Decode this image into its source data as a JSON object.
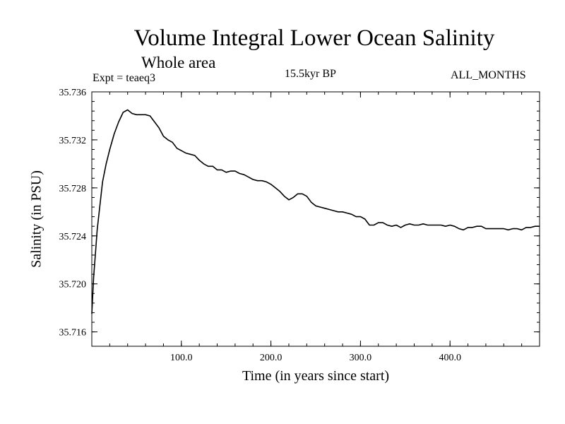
{
  "chart_data": {
    "type": "line",
    "title": "Volume Integral Lower Ocean Salinity",
    "subtitle": "Whole area",
    "experiment_label": "Expt = teaeq3",
    "period_label": "15.5kyr BP",
    "months_label": "ALL_MONTHS",
    "xlabel": "Time (in years since start)",
    "ylabel": "Salinity (in PSU)",
    "xlim": [
      0,
      500
    ],
    "ylim": [
      35.7148,
      35.736
    ],
    "x_ticks": [
      100,
      200,
      300,
      400
    ],
    "x_tick_labels": [
      "100.0",
      "200.0",
      "300.0",
      "400.0"
    ],
    "y_ticks": [
      35.716,
      35.72,
      35.724,
      35.728,
      35.732,
      35.736
    ],
    "y_tick_labels": [
      "35.716",
      "35.720",
      "35.724",
      "35.728",
      "35.732",
      "35.736"
    ],
    "series": [
      {
        "name": "Lower ocean salinity",
        "x": [
          0,
          2,
          4,
          6,
          9,
          12,
          16,
          20,
          25,
          30,
          35,
          40,
          45,
          50,
          55,
          60,
          65,
          70,
          75,
          80,
          85,
          90,
          95,
          100,
          105,
          110,
          115,
          120,
          125,
          130,
          135,
          140,
          145,
          150,
          155,
          160,
          165,
          170,
          175,
          180,
          185,
          190,
          195,
          200,
          205,
          210,
          215,
          220,
          225,
          230,
          235,
          240,
          245,
          250,
          255,
          260,
          265,
          270,
          275,
          280,
          285,
          290,
          295,
          300,
          305,
          310,
          315,
          320,
          325,
          330,
          335,
          340,
          345,
          350,
          355,
          360,
          365,
          370,
          375,
          380,
          385,
          390,
          395,
          400,
          405,
          410,
          415,
          420,
          425,
          430,
          435,
          440,
          445,
          450,
          455,
          460,
          465,
          470,
          475,
          480,
          485,
          490,
          495,
          500
        ],
        "values": [
          35.7175,
          35.7205,
          35.7225,
          35.7245,
          35.7265,
          35.7285,
          35.73,
          35.7312,
          35.7325,
          35.7335,
          35.7343,
          35.7345,
          35.7342,
          35.7341,
          35.7341,
          35.7341,
          35.734,
          35.7335,
          35.733,
          35.7323,
          35.732,
          35.7318,
          35.7313,
          35.7311,
          35.7309,
          35.7308,
          35.7307,
          35.7303,
          35.73,
          35.7298,
          35.7298,
          35.7295,
          35.7295,
          35.7293,
          35.7294,
          35.7294,
          35.7292,
          35.7291,
          35.7289,
          35.7287,
          35.7286,
          35.7286,
          35.7285,
          35.7283,
          35.728,
          35.7277,
          35.7273,
          35.727,
          35.7272,
          35.7275,
          35.7275,
          35.7273,
          35.7268,
          35.7265,
          35.7264,
          35.7263,
          35.7262,
          35.7261,
          35.726,
          35.726,
          35.7259,
          35.7258,
          35.7256,
          35.7256,
          35.7254,
          35.7249,
          35.7249,
          35.7251,
          35.7251,
          35.7249,
          35.7248,
          35.7249,
          35.7247,
          35.7249,
          35.725,
          35.7249,
          35.7249,
          35.725,
          35.7249,
          35.7249,
          35.7249,
          35.7249,
          35.7248,
          35.7249,
          35.7248,
          35.7246,
          35.7245,
          35.7247,
          35.7247,
          35.7248,
          35.7248,
          35.7246,
          35.7246,
          35.7246,
          35.7246,
          35.7246,
          35.7245,
          35.7246,
          35.7246,
          35.7245,
          35.7247,
          35.7247,
          35.7248,
          35.7248
        ]
      }
    ],
    "grid": false
  }
}
